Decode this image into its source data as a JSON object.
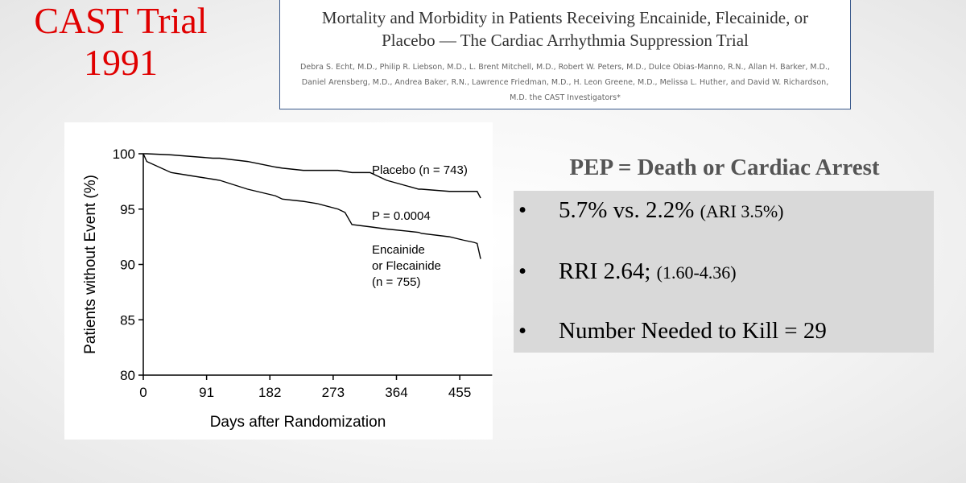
{
  "slide": {
    "title_lines": [
      "CAST Trial",
      "1991"
    ]
  },
  "paper": {
    "title": "Mortality and Morbidity in Patients Receiving Encainide, Flecainide, or Placebo — The Cardiac Arrhythmia Suppression Trial",
    "authors": "Debra S. Echt, M.D., Philip R. Liebson, M.D., L. Brent Mitchell, M.D., Robert W. Peters, M.D., Dulce Obias-Manno, R.N., Allan H. Barker, M.D., Daniel Arensberg, M.D., Andrea Baker, R.N., Lawrence Friedman, M.D., H. Leon Greene, M.D., Melissa L. Huther, and David W. Richardson, M.D. the CAST Investigators*"
  },
  "chart_data": {
    "type": "line",
    "x_label": "Days after Randomization",
    "y_label": "Patients without Event (%)",
    "x": [
      0,
      5,
      40,
      60,
      100,
      110,
      150,
      190,
      200,
      230,
      250,
      280,
      290,
      300,
      326,
      350,
      396,
      400,
      440,
      460,
      475,
      480,
      485
    ],
    "series": [
      {
        "label": "Placebo (n = 743)",
        "color": "#000000",
        "values": [
          100,
          100,
          99.9,
          99.8,
          99.6,
          99.6,
          99.3,
          98.8,
          98.7,
          98.5,
          98.5,
          98.5,
          98.4,
          98.3,
          98.3,
          97.6,
          96.8,
          96.8,
          96.6,
          96.6,
          96.6,
          96.6,
          96.0
        ]
      },
      {
        "label_lines": [
          "Encainide",
          "or Flecainide",
          "(n = 755)"
        ],
        "color": "#000000",
        "values": [
          100,
          99.3,
          98.3,
          98.1,
          97.7,
          97.6,
          96.8,
          96.2,
          95.9,
          95.7,
          95.5,
          95.0,
          94.7,
          93.6,
          93.4,
          93.2,
          92.9,
          92.8,
          92.5,
          92.2,
          92.0,
          91.9,
          90.5
        ]
      }
    ],
    "annotations": [
      "P = 0.0004"
    ],
    "xlim": [
      0,
      490
    ],
    "xticks": [
      0,
      91,
      182,
      273,
      364,
      455
    ],
    "ylim": [
      80,
      100
    ],
    "yticks": [
      80,
      85,
      90,
      95,
      100
    ]
  },
  "summary": {
    "heading": "PEP = Death or Cardiac Arrest",
    "bullets": [
      {
        "main": "5.7% vs. 2.2%",
        "note": "(ARI 3.5%)"
      },
      {
        "main": "RRI 2.64;",
        "note": "(1.60-4.36)"
      },
      {
        "main": "Number Needed to Kill = 29"
      }
    ]
  }
}
